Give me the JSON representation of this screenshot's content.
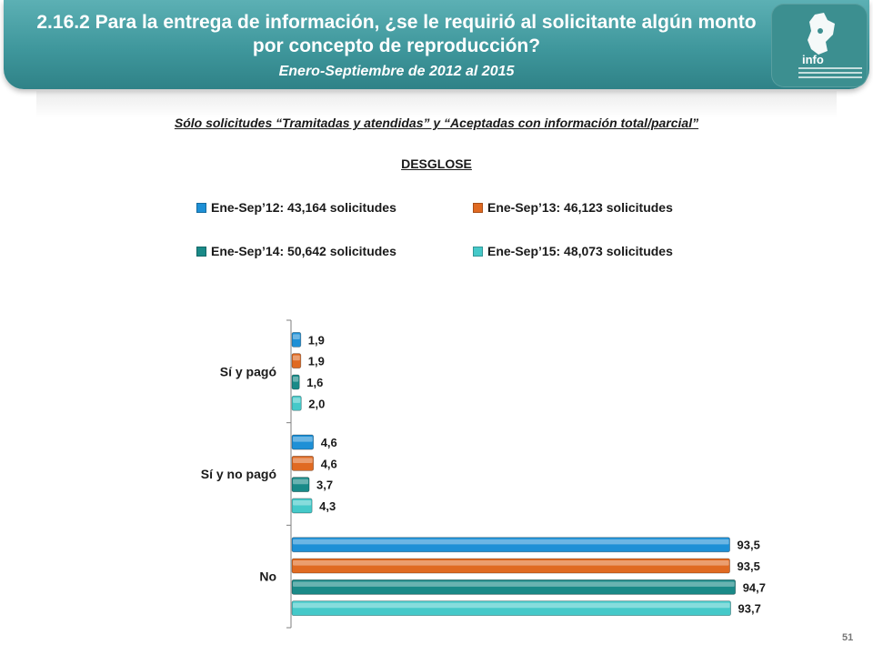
{
  "header": {
    "title_line1": "2.16.2 Para la entrega de información, ¿se le requirió al solicitante algún monto",
    "title_line2": "por concepto de reproducción?",
    "subtitle": "Enero-Septiembre de 2012 al 2015",
    "logo_text": "info"
  },
  "note": "Sólo solicitudes “Tramitadas y atendidas” y “Aceptadas con información total/parcial”",
  "breakdown_label": "DESGLOSE",
  "page_number": "51",
  "colors": {
    "header": "#3f979c",
    "series": [
      "#1e90d6",
      "#e06a22",
      "#1a8a88",
      "#45c9c9"
    ]
  },
  "chart_data": {
    "type": "bar",
    "orientation": "horizontal",
    "categories": [
      "Sí y pagó",
      "Sí y no pagó",
      "No"
    ],
    "series": [
      {
        "name": "Ene-Sep’12: 43,164 solicitudes",
        "values": [
          1.9,
          4.6,
          93.5
        ],
        "labels": [
          "1,9",
          "4,6",
          "93,5"
        ]
      },
      {
        "name": "Ene-Sep’13: 46,123 solicitudes",
        "values": [
          1.9,
          4.6,
          93.5
        ],
        "labels": [
          "1,9",
          "4,6",
          "93,5"
        ]
      },
      {
        "name": "Ene-Sep’14: 50,642 solicitudes",
        "values": [
          1.6,
          3.7,
          94.7
        ],
        "labels": [
          "1,6",
          "3,7",
          "94,7"
        ]
      },
      {
        "name": "Ene-Sep’15: 48,073 solicitudes",
        "values": [
          2.0,
          4.3,
          93.7
        ],
        "labels": [
          "2,0",
          "4,3",
          "93,7"
        ]
      }
    ],
    "xlim": [
      0,
      100
    ],
    "grid": false,
    "legend_position": "top"
  }
}
